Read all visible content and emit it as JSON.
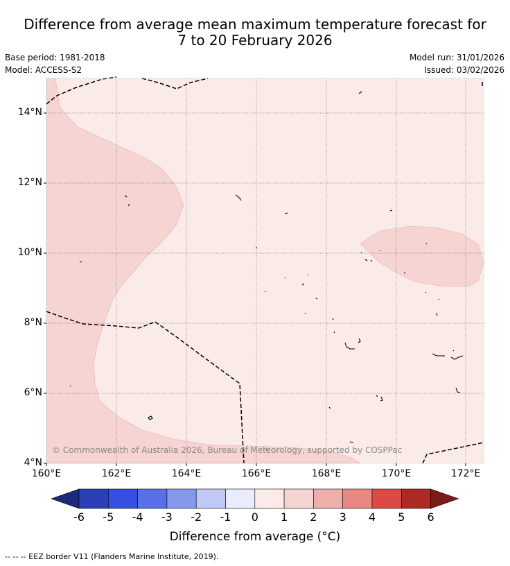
{
  "header": {
    "title_line1": "Difference from average mean maximum temperature forecast for",
    "title_line2": "7 to 20 February 2026",
    "base_period": "Base period: 1981-2018",
    "model": "Model: ACCESS-S2",
    "model_run": "Model run: 31/01/2026",
    "issued": "Issued: 03/02/2026"
  },
  "map": {
    "lat_labels": [
      "14°N",
      "12°N",
      "10°N",
      "8°N",
      "6°N",
      "4°N"
    ],
    "lon_labels": [
      "160°E",
      "162°E",
      "164°E",
      "166°E",
      "168°E",
      "170°E",
      "172°E"
    ],
    "copyright": "© Commonwealth of Australia 2026, Bureau of Meteorology, supported by COSPPac",
    "colors": {
      "category_0_1": "#fbebe8",
      "category_1_2": "#f5d4d2",
      "border": "#000000",
      "grid": "#666666"
    }
  },
  "colorbar": {
    "labels": [
      "-6",
      "-5",
      "-4",
      "-3",
      "-2",
      "-1",
      "0",
      "1",
      "2",
      "3",
      "4",
      "5",
      "6"
    ],
    "colors": [
      "#1b2a7e",
      "#2a3fb8",
      "#3550e0",
      "#5a70e6",
      "#8599ec",
      "#c0c8f4",
      "#e9ecfb",
      "#fbebe8",
      "#f5d4d2",
      "#eeaeaa",
      "#e98882",
      "#dc4a43",
      "#ae2a24",
      "#7b1b1a"
    ],
    "title": "Difference from average (°C)"
  },
  "footer": {
    "legend": "-- -- -- EEZ border V11 (Flanders Marine Institute, 2019)."
  }
}
